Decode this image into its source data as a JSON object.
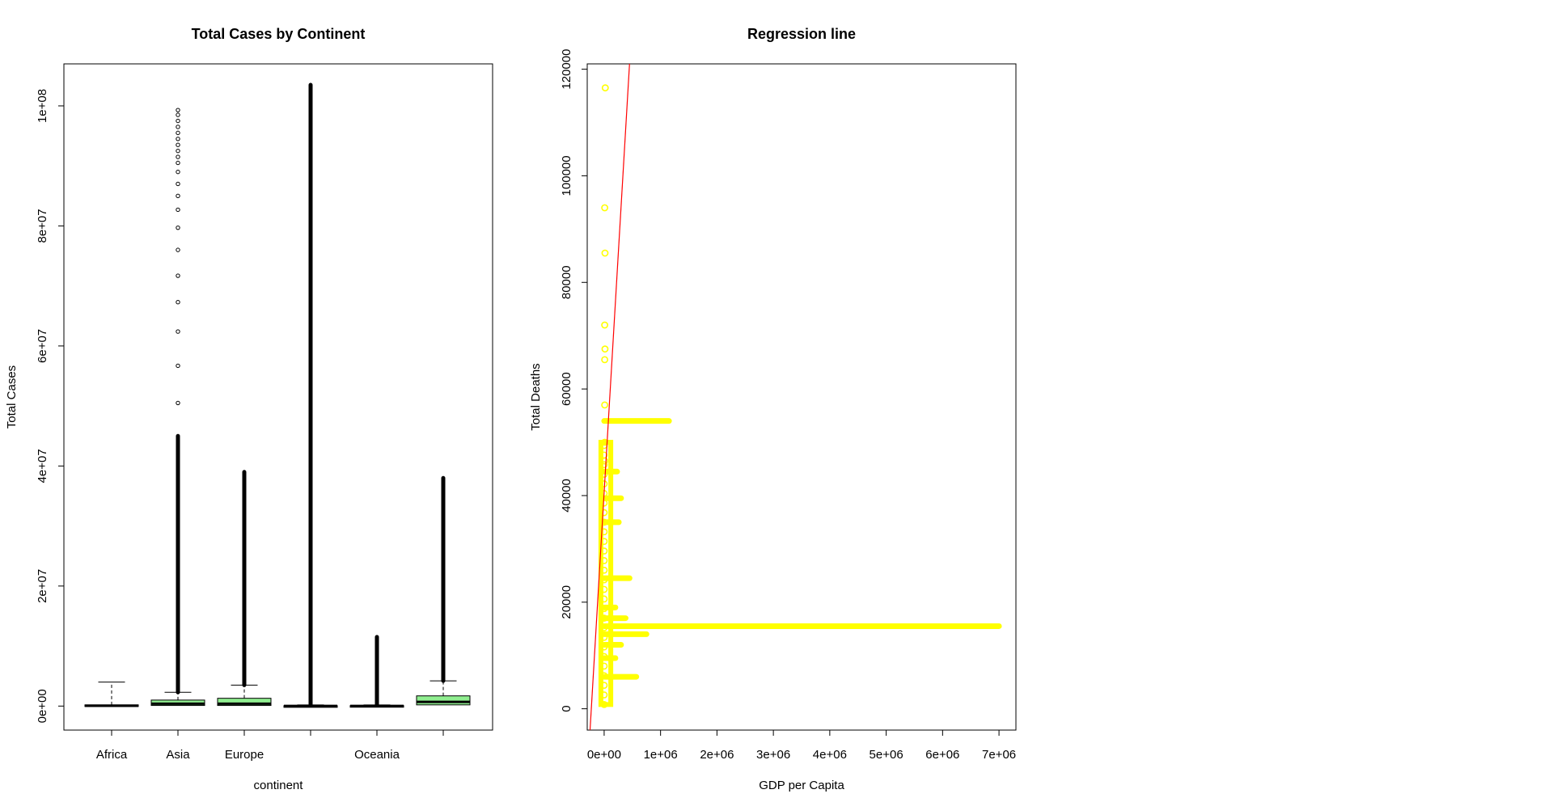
{
  "chart_data": [
    {
      "type": "box",
      "title": "Total Cases by Continent",
      "xlabel": "continent",
      "ylabel": "Total Cases",
      "ylim": [
        -4000000,
        107000000
      ],
      "yticks": [
        0,
        20000000,
        40000000,
        60000000,
        80000000,
        100000000
      ],
      "ytick_labels": [
        "0e+00",
        "2e+07",
        "4e+07",
        "6e+07",
        "8e+07",
        "1e+08"
      ],
      "categories": [
        "Africa",
        "Asia",
        "Europe",
        "",
        "Oceania",
        ""
      ],
      "box_color": "#90ee90",
      "boxes": [
        {
          "q1": 0,
          "median": 50000,
          "q3": 200000,
          "whisker_high": 4000000,
          "outliers_from": 4000000,
          "outliers_to": 4000000
        },
        {
          "q1": 100000,
          "median": 400000,
          "q3": 1000000,
          "whisker_high": 2300000,
          "outliers_from": 2300000,
          "outliers_to": 45000000,
          "sparse_outliers": [
            50500000,
            56700000,
            62400000,
            67300000,
            71700000,
            76000000,
            79700000,
            82700000,
            85000000,
            87000000,
            89000000,
            90500000,
            91500000,
            92500000,
            93500000,
            94500000,
            95500000,
            96500000,
            97500000,
            98500000,
            99300000
          ]
        },
        {
          "q1": 100000,
          "median": 400000,
          "q3": 1300000,
          "whisker_high": 3500000,
          "outliers_from": 3500000,
          "outliers_to": 39000000
        },
        {
          "q1": 0,
          "median": 20000,
          "q3": 60000,
          "whisker_high": 200000,
          "outliers_from": 200000,
          "outliers_to": 103500000
        },
        {
          "q1": 0,
          "median": 20000,
          "q3": 80000,
          "whisker_high": 200000,
          "outliers_from": 200000,
          "outliers_to": 11500000
        },
        {
          "q1": 200000,
          "median": 700000,
          "q3": 1700000,
          "whisker_high": 4200000,
          "outliers_from": 4200000,
          "outliers_to": 38000000
        }
      ]
    },
    {
      "type": "scatter",
      "title": "Regression line",
      "xlabel": "GDP per Capita",
      "ylabel": "Total Deaths",
      "xlim": [
        -300000,
        7300000
      ],
      "ylim": [
        -4000000,
        121000
      ],
      "xticks": [
        0,
        1000000,
        2000000,
        3000000,
        4000000,
        5000000,
        6000000,
        7000000
      ],
      "xtick_labels": [
        "0e+00",
        "1e+06",
        "2e+06",
        "3e+06",
        "4e+06",
        "5e+06",
        "6e+06",
        "7e+06"
      ],
      "yticks": [
        0,
        20000,
        40000,
        60000,
        80000,
        100000,
        120000
      ],
      "ytick_labels": [
        "0",
        "20000",
        "40000",
        "60000",
        "80000",
        "100000",
        "120000"
      ],
      "point_color": "#ffff00",
      "line_color": "#ff0000",
      "regression_line": [
        [
          -250000,
          -4000
        ],
        [
          450000,
          121000
        ]
      ],
      "points": [
        [
          20000,
          116500
        ],
        [
          10000,
          94000
        ],
        [
          15000,
          85500
        ],
        [
          10000,
          72000
        ],
        [
          15000,
          67500
        ],
        [
          10000,
          65500
        ],
        [
          10000,
          57000
        ],
        [
          10000,
          50000
        ],
        [
          10000,
          46500
        ]
      ],
      "horizontal_bands": [
        {
          "y": 54000,
          "x_to": 1150000
        },
        {
          "y": 44500,
          "x_to": 230000
        },
        {
          "y": 39500,
          "x_to": 300000
        },
        {
          "y": 35000,
          "x_to": 260000
        },
        {
          "y": 24500,
          "x_to": 450000
        },
        {
          "y": 19000,
          "x_to": 200000
        },
        {
          "y": 17000,
          "x_to": 380000
        },
        {
          "y": 15500,
          "x_to": 7000000
        },
        {
          "y": 14000,
          "x_to": 750000
        },
        {
          "y": 12000,
          "x_to": 300000
        },
        {
          "y": 9500,
          "x_to": 200000
        },
        {
          "y": 6000,
          "x_to": 570000
        }
      ],
      "dense_x_to": 60000,
      "dense_y_range": [
        800,
        50000
      ]
    }
  ]
}
